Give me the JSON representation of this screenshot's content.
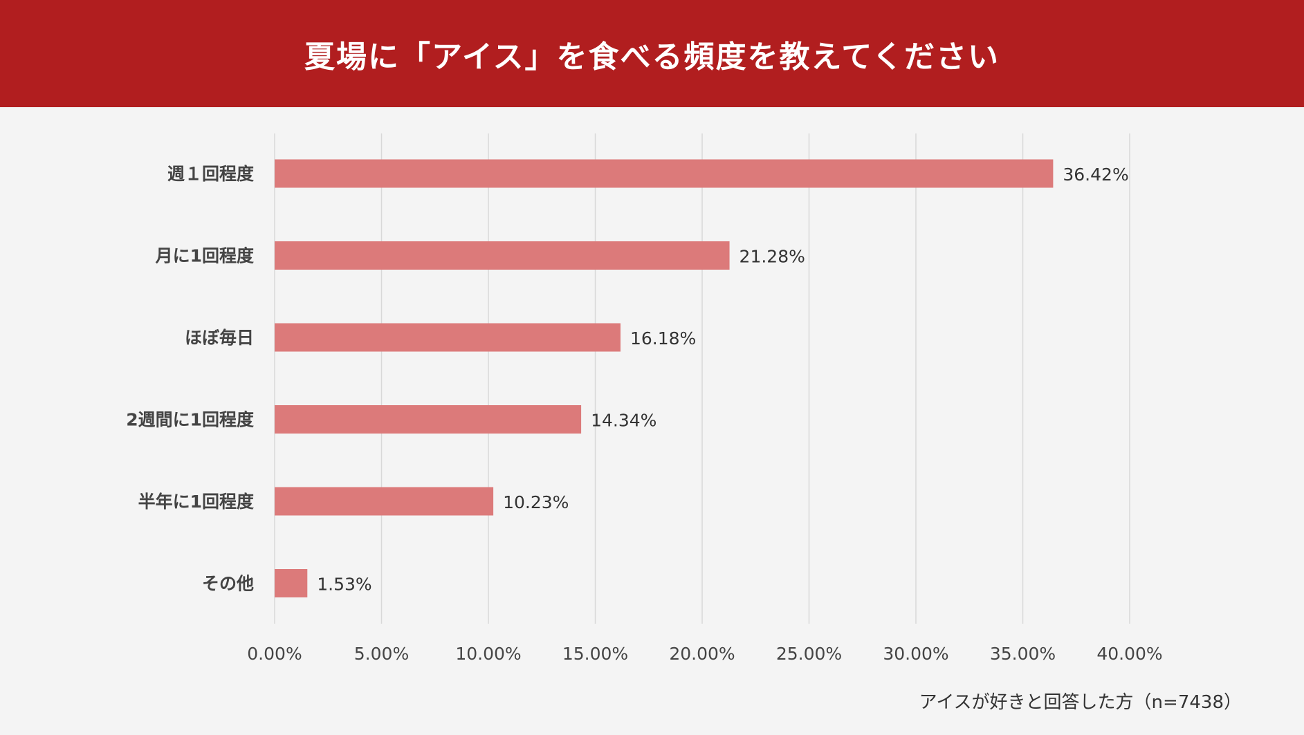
{
  "chart_data": {
    "type": "bar",
    "orientation": "horizontal",
    "title": "夏場に「アイス」を食べる頻度を教えてください",
    "categories": [
      "週１回程度",
      "月に1回程度",
      "ほぼ毎日",
      "2週間に1回程度",
      "半年に1回程度",
      "その他"
    ],
    "values": [
      36.42,
      21.28,
      16.18,
      14.34,
      10.23,
      1.53
    ],
    "value_labels": [
      "36.42%",
      "21.28%",
      "16.18%",
      "14.34%",
      "10.23%",
      "1.53%"
    ],
    "xlim": [
      0,
      40
    ],
    "x_ticks": [
      0,
      5,
      10,
      15,
      20,
      25,
      30,
      35,
      40
    ],
    "x_tick_labels": [
      "0.00%",
      "5.00%",
      "10.00%",
      "15.00%",
      "20.00%",
      "25.00%",
      "30.00%",
      "35.00%",
      "40.00%"
    ],
    "grid": true,
    "xlabel": "",
    "ylabel": "",
    "note": "アイスが好きと回答した方（n=7438）"
  },
  "colors": {
    "header": "#b11e1f",
    "bar": "#dc7a7a",
    "background": "#f4f4f4",
    "grid": "#d8d8d8",
    "text": "#333333"
  }
}
